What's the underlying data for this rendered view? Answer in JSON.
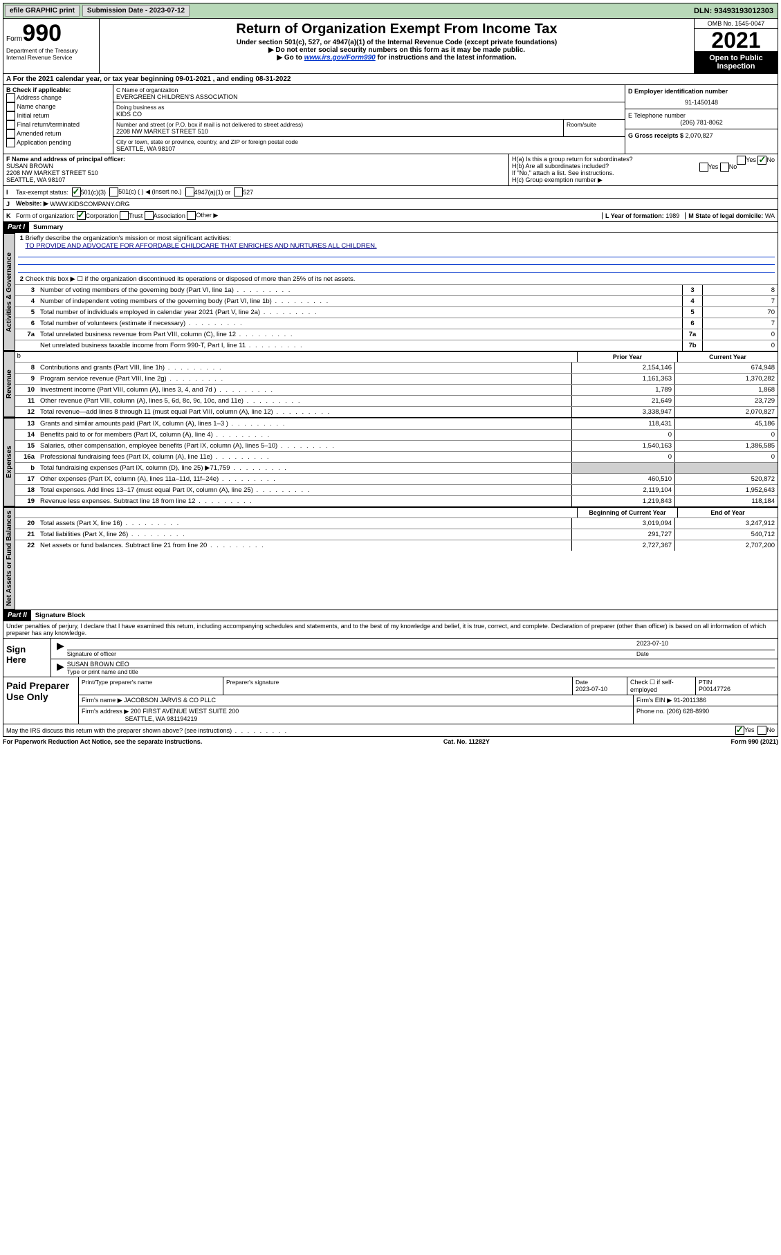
{
  "topbar": {
    "efile": "efile GRAPHIC print",
    "submission": "Submission Date - 2023-07-12",
    "dln": "DLN: 93493193012303"
  },
  "header": {
    "form_word": "Form",
    "form_num": "990",
    "dept": "Department of the Treasury",
    "irs": "Internal Revenue Service",
    "title": "Return of Organization Exempt From Income Tax",
    "sub1": "Under section 501(c), 527, or 4947(a)(1) of the Internal Revenue Code (except private foundations)",
    "sub2": "▶ Do not enter social security numbers on this form as it may be made public.",
    "sub3_pre": "▶ Go to ",
    "sub3_link": "www.irs.gov/Form990",
    "sub3_post": " for instructions and the latest information.",
    "omb": "OMB No. 1545-0047",
    "year": "2021",
    "inspect": "Open to Public Inspection"
  },
  "row_a": "A For the 2021 calendar year, or tax year beginning 09-01-2021  , and ending 08-31-2022",
  "block_b": {
    "b_header": "B Check if applicable:",
    "b_opts": [
      "Address change",
      "Name change",
      "Initial return",
      "Final return/terminated",
      "Amended return",
      "Application pending"
    ],
    "c_label": "C Name of organization",
    "c_name": "EVERGREEN CHILDREN'S ASSOCIATION",
    "dba_label": "Doing business as",
    "dba": "KIDS CO",
    "addr_label": "Number and street (or P.O. box if mail is not delivered to street address)",
    "addr": "2208 NW MARKET STREET 510",
    "room": "Room/suite",
    "city_label": "City or town, state or province, country, and ZIP or foreign postal code",
    "city": "SEATTLE, WA  98107",
    "d_label": "D Employer identification number",
    "d_ein": "91-1450148",
    "e_label": "E Telephone number",
    "e_phone": "(206) 781-8062",
    "g_label": "G Gross receipts $",
    "g_val": "2,070,827"
  },
  "block_f": {
    "f_label": "F Name and address of principal officer:",
    "f_name": "SUSAN BROWN",
    "f_addr1": "2208 NW MARKET STREET 510",
    "f_addr2": "SEATTLE, WA  98107",
    "ha": "H(a)  Is this a group return for subordinates?",
    "hb": "H(b)  Are all subordinates included?",
    "hb_note": "If \"No,\" attach a list. See instructions.",
    "hc": "H(c)  Group exemption number ▶"
  },
  "line_i": {
    "label": "I",
    "text": "Tax-exempt status:",
    "opts": [
      "501(c)(3)",
      "501(c) (  ) ◀ (insert no.)",
      "4947(a)(1) or",
      "527"
    ]
  },
  "line_j": {
    "label": "J",
    "text": "Website: ▶",
    "val": "WWW.KIDSCOMPANY.ORG"
  },
  "line_k": {
    "label": "K",
    "text": "Form of organization:",
    "opts": [
      "Corporation",
      "Trust",
      "Association",
      "Other ▶"
    ],
    "l_label": "L Year of formation:",
    "l_val": "1989",
    "m_label": "M State of legal domicile:",
    "m_val": "WA"
  },
  "part1": {
    "hdr": "Part I",
    "title": "Summary",
    "line1": "Briefly describe the organization's mission or most significant activities:",
    "mission": "TO PROVIDE AND ADVOCATE FOR AFFORDABLE CHILDCARE THAT ENRICHES AND NURTURES ALL CHILDREN.",
    "line2": "Check this box ▶ ☐ if the organization discontinued its operations or disposed of more than 25% of its net assets.",
    "governance_tab": "Activities & Governance",
    "revenue_tab": "Revenue",
    "expenses_tab": "Expenses",
    "netassets_tab": "Net Assets or Fund Balances",
    "lines_single": [
      {
        "n": "3",
        "d": "Number of voting members of the governing body (Part VI, line 1a)",
        "box": "3",
        "v": "8"
      },
      {
        "n": "4",
        "d": "Number of independent voting members of the governing body (Part VI, line 1b)",
        "box": "4",
        "v": "7"
      },
      {
        "n": "5",
        "d": "Total number of individuals employed in calendar year 2021 (Part V, line 2a)",
        "box": "5",
        "v": "70"
      },
      {
        "n": "6",
        "d": "Total number of volunteers (estimate if necessary)",
        "box": "6",
        "v": "7"
      },
      {
        "n": "7a",
        "d": "Total unrelated business revenue from Part VIII, column (C), line 12",
        "box": "7a",
        "v": "0"
      },
      {
        "n": "",
        "d": "Net unrelated business taxable income from Form 990-T, Part I, line 11",
        "box": "7b",
        "v": "0"
      }
    ],
    "col_prior": "Prior Year",
    "col_current": "Current Year",
    "revenue_lines": [
      {
        "n": "8",
        "d": "Contributions and grants (Part VIII, line 1h)",
        "p": "2,154,146",
        "c": "674,948"
      },
      {
        "n": "9",
        "d": "Program service revenue (Part VIII, line 2g)",
        "p": "1,161,363",
        "c": "1,370,282"
      },
      {
        "n": "10",
        "d": "Investment income (Part VIII, column (A), lines 3, 4, and 7d )",
        "p": "1,789",
        "c": "1,868"
      },
      {
        "n": "11",
        "d": "Other revenue (Part VIII, column (A), lines 5, 6d, 8c, 9c, 10c, and 11e)",
        "p": "21,649",
        "c": "23,729"
      },
      {
        "n": "12",
        "d": "Total revenue—add lines 8 through 11 (must equal Part VIII, column (A), line 12)",
        "p": "3,338,947",
        "c": "2,070,827"
      }
    ],
    "expense_lines": [
      {
        "n": "13",
        "d": "Grants and similar amounts paid (Part IX, column (A), lines 1–3 )",
        "p": "118,431",
        "c": "45,186"
      },
      {
        "n": "14",
        "d": "Benefits paid to or for members (Part IX, column (A), line 4)",
        "p": "0",
        "c": "0"
      },
      {
        "n": "15",
        "d": "Salaries, other compensation, employee benefits (Part IX, column (A), lines 5–10)",
        "p": "1,540,163",
        "c": "1,386,585"
      },
      {
        "n": "16a",
        "d": "Professional fundraising fees (Part IX, column (A), line 11e)",
        "p": "0",
        "c": "0"
      },
      {
        "n": "b",
        "d": "Total fundraising expenses (Part IX, column (D), line 25) ▶71,759",
        "p": "",
        "c": "",
        "shade": true
      },
      {
        "n": "17",
        "d": "Other expenses (Part IX, column (A), lines 11a–11d, 11f–24e)",
        "p": "460,510",
        "c": "520,872"
      },
      {
        "n": "18",
        "d": "Total expenses. Add lines 13–17 (must equal Part IX, column (A), line 25)",
        "p": "2,119,104",
        "c": "1,952,643"
      },
      {
        "n": "19",
        "d": "Revenue less expenses. Subtract line 18 from line 12",
        "p": "1,219,843",
        "c": "118,184"
      }
    ],
    "col_begin": "Beginning of Current Year",
    "col_end": "End of Year",
    "netasset_lines": [
      {
        "n": "20",
        "d": "Total assets (Part X, line 16)",
        "p": "3,019,094",
        "c": "3,247,912"
      },
      {
        "n": "21",
        "d": "Total liabilities (Part X, line 26)",
        "p": "291,727",
        "c": "540,712"
      },
      {
        "n": "22",
        "d": "Net assets or fund balances. Subtract line 21 from line 20",
        "p": "2,727,367",
        "c": "2,707,200"
      }
    ]
  },
  "part2": {
    "hdr": "Part II",
    "title": "Signature Block",
    "decl": "Under penalties of perjury, I declare that I have examined this return, including accompanying schedules and statements, and to the best of my knowledge and belief, it is true, correct, and complete. Declaration of preparer (other than officer) is based on all information of which preparer has any knowledge.",
    "sign_here": "Sign Here",
    "sig_officer": "Signature of officer",
    "sig_date": "2023-07-10",
    "sig_date_lbl": "Date",
    "sig_name": "SUSAN BROWN CEO",
    "sig_name_lbl": "Type or print name and title",
    "paid": "Paid Preparer Use Only",
    "prep_name_lbl": "Print/Type preparer's name",
    "prep_sig_lbl": "Preparer's signature",
    "prep_date_lbl": "Date",
    "prep_date": "2023-07-10",
    "prep_check": "Check ☐ if self-employed",
    "prep_ptin_lbl": "PTIN",
    "prep_ptin": "P00147726",
    "firm_name_lbl": "Firm's name    ▶",
    "firm_name": "JACOBSON JARVIS & CO PLLC",
    "firm_ein_lbl": "Firm's EIN ▶",
    "firm_ein": "91-2011386",
    "firm_addr_lbl": "Firm's address ▶",
    "firm_addr1": "200 FIRST AVENUE WEST SUITE 200",
    "firm_addr2": "SEATTLE, WA  981194219",
    "firm_phone_lbl": "Phone no.",
    "firm_phone": "(206) 628-8990",
    "discuss": "May the IRS discuss this return with the preparer shown above? (see instructions)"
  },
  "footer": {
    "left": "For Paperwork Reduction Act Notice, see the separate instructions.",
    "mid": "Cat. No. 11282Y",
    "right": "Form 990 (2021)"
  }
}
